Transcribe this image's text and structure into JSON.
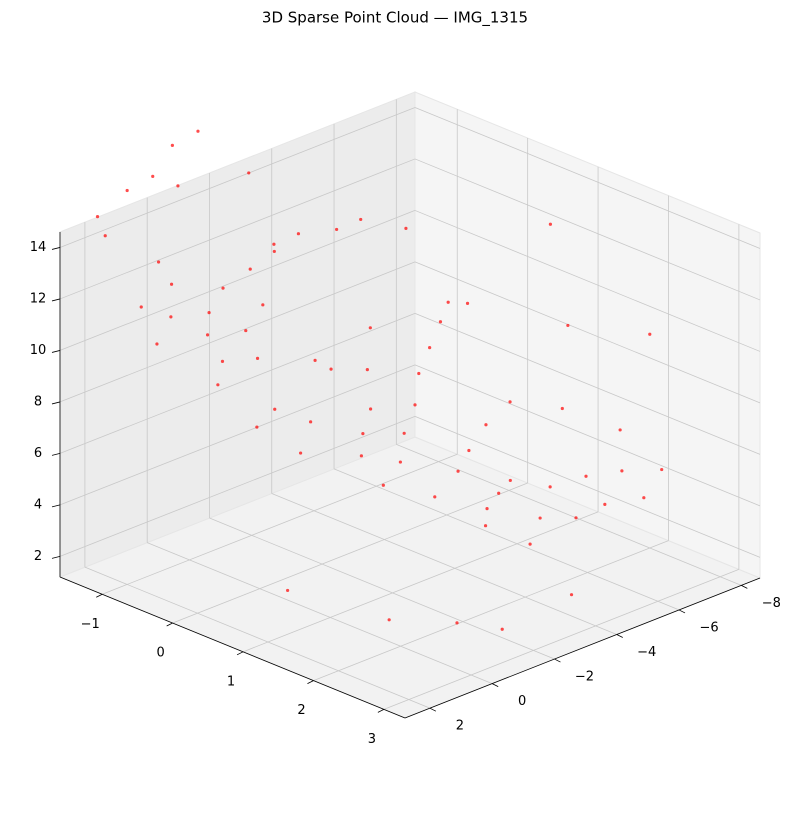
{
  "chart_data": {
    "type": "scatter3d",
    "title": "3D Sparse Point Cloud — IMG_1315",
    "color": "#ff0000",
    "xlim": [
      -8.6,
      2.8
    ],
    "ylim": [
      -1.6,
      3.3
    ],
    "zlim": [
      1.2,
      14.6
    ],
    "xticks": [
      {
        "value": -8,
        "label": "−8"
      },
      {
        "value": -6,
        "label": "−6"
      },
      {
        "value": -4,
        "label": "−4"
      },
      {
        "value": -2,
        "label": "−2"
      },
      0,
      2
    ],
    "yticks": [
      {
        "value": -1,
        "label": "−1"
      },
      0,
      1,
      2,
      3
    ],
    "zticks": [
      2,
      4,
      6,
      8,
      10,
      12,
      14
    ],
    "grid": true,
    "x": [
      -3.6,
      -3.0,
      -4.2,
      -4.8,
      -5.5,
      -6.2,
      -2.5,
      -3.8,
      -4.5,
      -5.2,
      -6.0,
      -6.8,
      -2.0,
      -3.2,
      -4.0,
      -5.0,
      -6.0,
      -7.0,
      -7.5,
      -2.8,
      -1.0,
      -1.5,
      -2.2,
      -0.5,
      0.2,
      -1.8,
      -2.6,
      -3.4,
      -4.2,
      -5.0,
      -5.8,
      -6.5,
      0.5,
      1.0,
      -0.8,
      -3.0,
      -4.0,
      -2.0,
      0.5,
      1.0,
      1.5,
      0.0,
      2.0,
      1.2,
      0.8,
      2.4,
      1.8,
      -0.4,
      0.3,
      -1.0,
      -1.5,
      -2.5,
      -3.5,
      -4.5,
      -5.5,
      -6.5,
      2.5,
      2.0,
      1.5,
      0.5,
      -0.5,
      1.0,
      2.8,
      -1.0,
      0.0,
      1.8,
      -7.8,
      -8.0,
      -6.5,
      1.5,
      0.0,
      -1.0,
      2.5,
      -3.0,
      -8.2,
      -5.0
    ],
    "y": [
      1.8,
      1.9,
      1.7,
      2.0,
      2.2,
      2.4,
      2.1,
      2.3,
      2.5,
      2.6,
      2.8,
      2.7,
      1.6,
      1.4,
      1.2,
      1.0,
      0.9,
      1.2,
      1.8,
      2.6,
      1.0,
      0.8,
      0.6,
      0.5,
      0.3,
      1.2,
      0.9,
      0.7,
      0.4,
      0.2,
      0.0,
      -0.2,
      0.8,
      0.4,
      1.4,
      0.2,
      -0.2,
      -0.1,
      -0.5,
      -0.3,
      -0.6,
      -0.2,
      -0.8,
      0.0,
      -0.9,
      -0.4,
      0.2,
      -0.7,
      0.1,
      -0.4,
      -0.8,
      -0.9,
      -1.0,
      -0.9,
      -1.0,
      -0.8,
      -1.2,
      -1.0,
      -0.5,
      -1.3,
      -1.1,
      -0.8,
      -0.2,
      -0.6,
      0.2,
      -1.4,
      -0.5,
      2.0,
      1.5,
      2.5,
      2.8,
      3.0,
      1.5,
      3.1,
      0.5,
      -1.2
    ],
    "z": [
      5.2,
      5.0,
      5.3,
      5.1,
      5.4,
      5.5,
      4.8,
      4.7,
      4.6,
      4.9,
      5.0,
      5.6,
      5.6,
      5.8,
      6.0,
      6.3,
      6.6,
      6.2,
      5.8,
      4.5,
      7.0,
      7.4,
      7.8,
      8.0,
      8.6,
      6.6,
      7.0,
      7.5,
      8.0,
      8.4,
      8.8,
      9.0,
      7.6,
      8.4,
      6.4,
      8.5,
      9.2,
      9.0,
      11.6,
      11.2,
      11.8,
      11.0,
      12.2,
      10.6,
      12.4,
      11.4,
      10.2,
      11.9,
      10.4,
      11.3,
      12.0,
      12.1,
      12.2,
      12.0,
      11.8,
      11.2,
      15.5,
      16.5,
      17.0,
      16.0,
      17.5,
      18.0,
      15.0,
      16.2,
      14.8,
      14.2,
      8.0,
      9.5,
      10.0,
      3.5,
      3.0,
      2.5,
      4.0,
      3.0,
      12.0,
      6.0
    ]
  }
}
